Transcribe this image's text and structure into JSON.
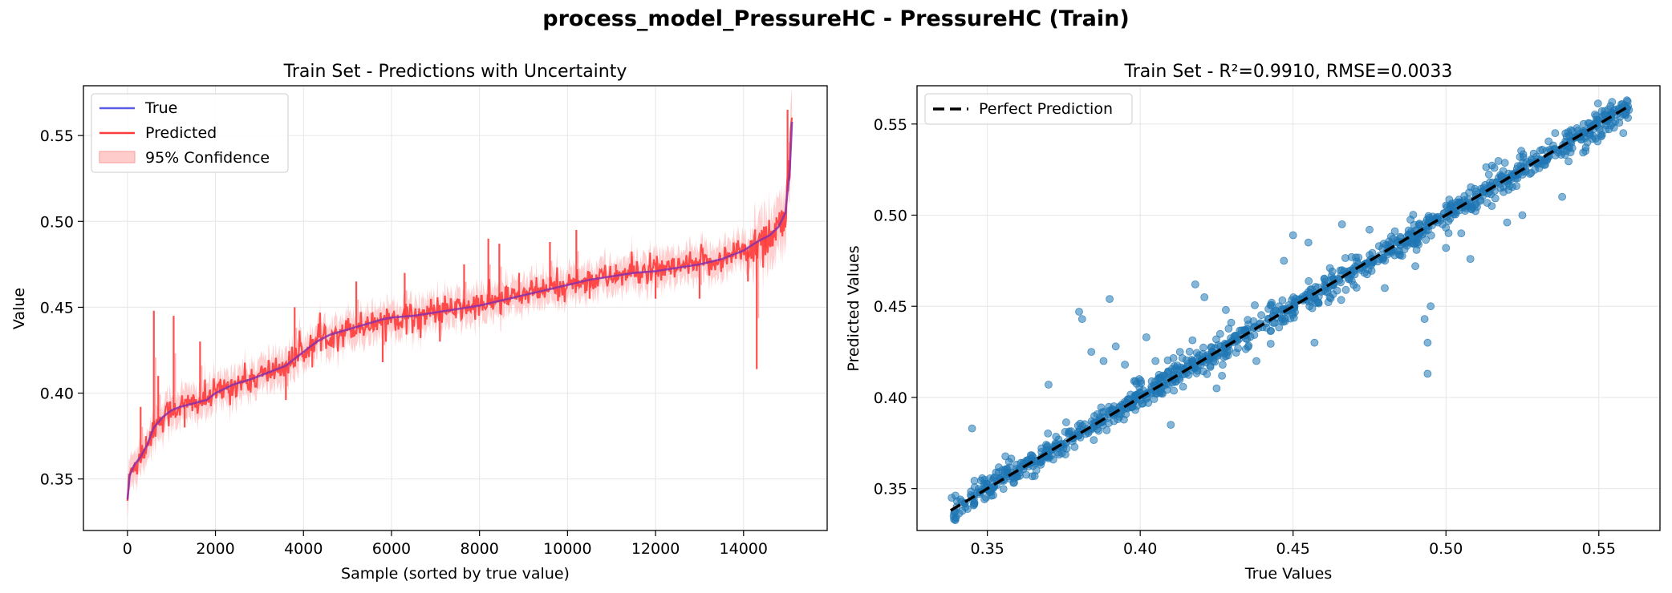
{
  "figure": {
    "title": "process_model_PressureHC - PressureHC (Train)"
  },
  "chart_data": [
    {
      "type": "line",
      "title": "Train Set - Predictions with Uncertainty",
      "xlabel": "Sample (sorted by true value)",
      "ylabel": "Value",
      "xlim": [
        -1000,
        15900
      ],
      "ylim": [
        0.32,
        0.579
      ],
      "xticks": [
        0,
        2000,
        4000,
        6000,
        8000,
        10000,
        12000,
        14000
      ],
      "xtick_labels": [
        "0",
        "2000",
        "4000",
        "6000",
        "8000",
        "10000",
        "12000",
        "14000"
      ],
      "yticks": [
        0.35,
        0.4,
        0.45,
        0.5,
        0.55
      ],
      "ytick_labels": [
        "0.35",
        "0.40",
        "0.45",
        "0.50",
        "0.55"
      ],
      "grid": true,
      "legend": {
        "position": "upper-left",
        "entries": [
          "True",
          "Predicted",
          "95% Confidence"
        ]
      },
      "colors": {
        "true": "#5b5be8",
        "predicted": "#ff3b3b",
        "band": "#ffb3b3"
      },
      "true_curve": {
        "name": "True",
        "x": [
          0,
          50,
          150,
          300,
          450,
          600,
          800,
          1000,
          1200,
          1500,
          1800,
          2000,
          2400,
          2800,
          3200,
          3600,
          3800,
          4000,
          4300,
          4600,
          5000,
          5400,
          5800,
          6000,
          6500,
          7000,
          7500,
          8000,
          8500,
          9000,
          9500,
          10000,
          10500,
          11000,
          11500,
          12000,
          12500,
          13000,
          13500,
          14000,
          14300,
          14600,
          14800,
          14950,
          15050,
          15100
        ],
        "y": [
          0.338,
          0.352,
          0.358,
          0.363,
          0.37,
          0.38,
          0.386,
          0.39,
          0.392,
          0.394,
          0.396,
          0.4,
          0.405,
          0.408,
          0.412,
          0.416,
          0.42,
          0.424,
          0.43,
          0.434,
          0.437,
          0.44,
          0.443,
          0.444,
          0.445,
          0.447,
          0.449,
          0.451,
          0.454,
          0.457,
          0.46,
          0.463,
          0.466,
          0.468,
          0.47,
          0.471,
          0.473,
          0.475,
          0.478,
          0.483,
          0.488,
          0.492,
          0.497,
          0.505,
          0.53,
          0.558
        ]
      },
      "predicted_outliers": [
        {
          "x": 300,
          "y": 0.392
        },
        {
          "x": 420,
          "y": 0.375
        },
        {
          "x": 600,
          "y": 0.448
        },
        {
          "x": 700,
          "y": 0.41
        },
        {
          "x": 1050,
          "y": 0.445
        },
        {
          "x": 1300,
          "y": 0.38
        },
        {
          "x": 1650,
          "y": 0.43
        },
        {
          "x": 3600,
          "y": 0.396
        },
        {
          "x": 3800,
          "y": 0.45
        },
        {
          "x": 4200,
          "y": 0.415
        },
        {
          "x": 5200,
          "y": 0.465
        },
        {
          "x": 5800,
          "y": 0.418
        },
        {
          "x": 6300,
          "y": 0.47
        },
        {
          "x": 7100,
          "y": 0.43
        },
        {
          "x": 7650,
          "y": 0.475
        },
        {
          "x": 8200,
          "y": 0.49
        },
        {
          "x": 8450,
          "y": 0.487
        },
        {
          "x": 8900,
          "y": 0.47
        },
        {
          "x": 9600,
          "y": 0.488
        },
        {
          "x": 10200,
          "y": 0.495
        },
        {
          "x": 10500,
          "y": 0.455
        },
        {
          "x": 11100,
          "y": 0.475
        },
        {
          "x": 12000,
          "y": 0.455
        },
        {
          "x": 13000,
          "y": 0.455
        },
        {
          "x": 14100,
          "y": 0.465
        },
        {
          "x": 14300,
          "y": 0.414
        },
        {
          "x": 14500,
          "y": 0.485
        },
        {
          "x": 15000,
          "y": 0.565
        }
      ]
    },
    {
      "type": "scatter",
      "title": "Train Set - R²=0.9910, RMSE=0.0033",
      "xlabel": "True Values",
      "ylabel": "Predicted Values",
      "xlim": [
        0.327,
        0.57
      ],
      "ylim": [
        0.327,
        0.571
      ],
      "xticks": [
        0.35,
        0.4,
        0.45,
        0.5,
        0.55
      ],
      "xtick_labels": [
        "0.35",
        "0.40",
        "0.45",
        "0.50",
        "0.55"
      ],
      "yticks": [
        0.35,
        0.4,
        0.45,
        0.5,
        0.55
      ],
      "ytick_labels": [
        "0.35",
        "0.40",
        "0.45",
        "0.50",
        "0.55"
      ],
      "grid": true,
      "legend": {
        "position": "upper-left",
        "entries": [
          "Perfect Prediction"
        ]
      },
      "colors": {
        "points": "#1f77b4",
        "reference_line": "#000000"
      },
      "reference_line": {
        "name": "Perfect Prediction",
        "x": [
          0.338,
          0.56
        ],
        "y": [
          0.338,
          0.56
        ]
      },
      "outlier_points": [
        [
          0.345,
          0.383
        ],
        [
          0.37,
          0.407
        ],
        [
          0.38,
          0.447
        ],
        [
          0.381,
          0.443
        ],
        [
          0.384,
          0.425
        ],
        [
          0.388,
          0.42
        ],
        [
          0.39,
          0.454
        ],
        [
          0.392,
          0.428
        ],
        [
          0.395,
          0.418
        ],
        [
          0.398,
          0.409
        ],
        [
          0.402,
          0.433
        ],
        [
          0.405,
          0.42
        ],
        [
          0.41,
          0.385
        ],
        [
          0.413,
          0.425
        ],
        [
          0.418,
          0.462
        ],
        [
          0.421,
          0.455
        ],
        [
          0.425,
          0.405
        ],
        [
          0.428,
          0.448
        ],
        [
          0.432,
          0.427
        ],
        [
          0.438,
          0.42
        ],
        [
          0.443,
          0.452
        ],
        [
          0.447,
          0.475
        ],
        [
          0.45,
          0.489
        ],
        [
          0.455,
          0.485
        ],
        [
          0.457,
          0.43
        ],
        [
          0.462,
          0.455
        ],
        [
          0.466,
          0.495
        ],
        [
          0.47,
          0.47
        ],
        [
          0.475,
          0.492
        ],
        [
          0.48,
          0.46
        ],
        [
          0.485,
          0.478
        ],
        [
          0.49,
          0.472
        ],
        [
          0.493,
          0.443
        ],
        [
          0.494,
          0.413
        ],
        [
          0.494,
          0.43
        ],
        [
          0.495,
          0.45
        ],
        [
          0.5,
          0.482
        ],
        [
          0.505,
          0.49
        ],
        [
          0.508,
          0.476
        ],
        [
          0.515,
          0.505
        ],
        [
          0.52,
          0.496
        ],
        [
          0.525,
          0.5
        ],
        [
          0.528,
          0.53
        ],
        [
          0.533,
          0.53
        ],
        [
          0.538,
          0.51
        ],
        [
          0.54,
          0.538
        ],
        [
          0.545,
          0.55
        ],
        [
          0.551,
          0.557
        ],
        [
          0.555,
          0.548
        ],
        [
          0.558,
          0.545
        ]
      ]
    }
  ]
}
